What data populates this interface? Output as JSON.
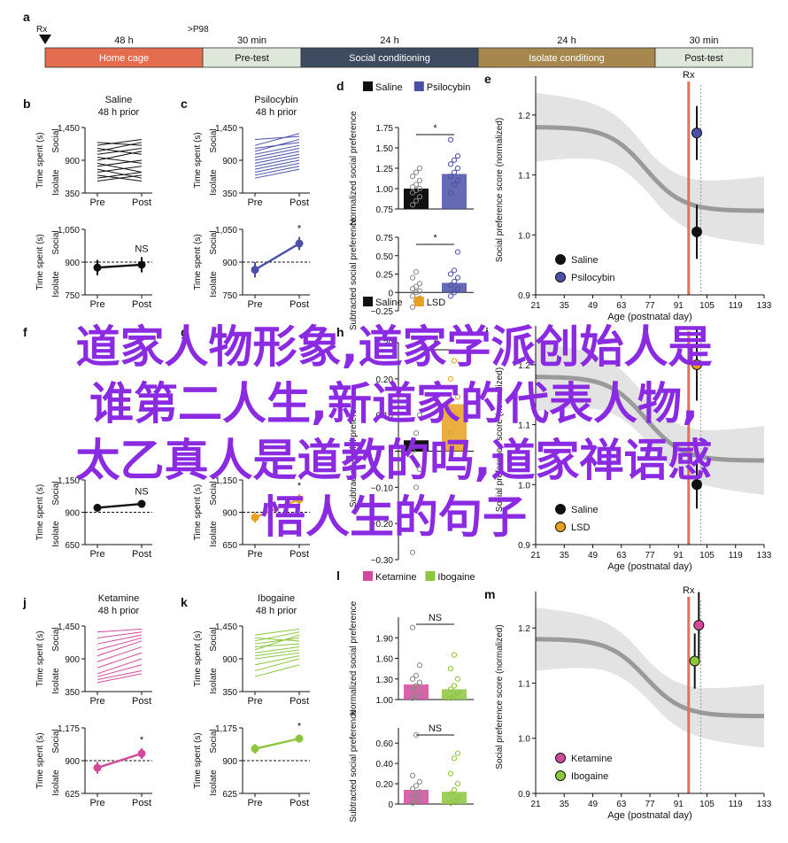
{
  "timeline": {
    "panel": "a",
    "rx_label": "Rx",
    "p98_label": ">P98",
    "segments": [
      {
        "duration": "48 h",
        "label": "Home cage",
        "color": "#e46c4f",
        "text_color": "#ffffff"
      },
      {
        "duration": "30 min",
        "label": "Pre-test",
        "color": "#dfe6da",
        "text_color": "#111111"
      },
      {
        "duration": "24 h",
        "label": "Social conditioning",
        "color": "#3d4a5f",
        "text_color": "#ffffff"
      },
      {
        "duration": "24 h",
        "label": "Isolate conditiong",
        "color": "#a6884f",
        "text_color": "#ffffff"
      },
      {
        "duration": "30 min",
        "label": "Post-test",
        "color": "#dfe6da",
        "text_color": "#111111"
      }
    ]
  },
  "overlay_text": [
    "道家人物形象,道家学派创始人是",
    "谁第二人生,新道家的代表人物,",
    "太乙真人是道教的吗,道家禅语感",
    "悟人生的句子"
  ],
  "chart_data": [
    {
      "panel": "b",
      "type": "line",
      "title": "Saline",
      "subtitle": "48 h prior",
      "ylabel": "Time spent (s)",
      "y_top_label": "Social",
      "y_bottom_label": "Isolate",
      "categories": [
        "Pre",
        "Post"
      ],
      "ylim": [
        350,
        1450
      ],
      "yticks": [
        350,
        900,
        1450
      ],
      "yticklabels": [
        "350",
        "900",
        "1,450"
      ],
      "color": "#111111",
      "series": [
        {
          "values": [
            1200,
            1150
          ]
        },
        {
          "values": [
            1150,
            1250
          ]
        },
        {
          "values": [
            1100,
            1000
          ]
        },
        {
          "values": [
            1050,
            1200
          ]
        },
        {
          "values": [
            1000,
            1100
          ]
        },
        {
          "values": [
            950,
            850
          ]
        },
        {
          "values": [
            900,
            1050
          ]
        },
        {
          "values": [
            850,
            700
          ]
        },
        {
          "values": [
            800,
            900
          ]
        },
        {
          "values": [
            750,
            600
          ]
        },
        {
          "values": [
            700,
            800
          ]
        },
        {
          "values": [
            650,
            550
          ]
        },
        {
          "values": [
            600,
            700
          ]
        },
        {
          "values": [
            550,
            650
          ]
        }
      ]
    },
    {
      "panel": "b2",
      "type": "line",
      "ylabel": "Time spent (s)",
      "y_top_label": "Social",
      "y_bottom_label": "Isolate",
      "categories": [
        "Pre",
        "Post"
      ],
      "ylim": [
        750,
        1050
      ],
      "yticks": [
        750,
        900,
        1050
      ],
      "yticklabels": [
        "750",
        "900",
        "1,050"
      ],
      "baseline": 900,
      "significance": "NS",
      "color": "#111111",
      "mean": [
        875,
        888
      ],
      "err": [
        35,
        35
      ]
    },
    {
      "panel": "c",
      "type": "line",
      "title": "Psilocybin",
      "subtitle": "48 h prior",
      "ylabel": "Time spent (s)",
      "y_top_label": "Social",
      "y_bottom_label": "Isolate",
      "categories": [
        "Pre",
        "Post"
      ],
      "ylim": [
        350,
        1450
      ],
      "yticks": [
        350,
        900,
        1450
      ],
      "yticklabels": [
        "350",
        "900",
        "1,450"
      ],
      "color": "#4b4fa6",
      "series": [
        {
          "values": [
            1250,
            1300
          ]
        },
        {
          "values": [
            1150,
            1350
          ]
        },
        {
          "values": [
            1100,
            1200
          ]
        },
        {
          "values": [
            1050,
            1250
          ]
        },
        {
          "values": [
            1000,
            1150
          ]
        },
        {
          "values": [
            950,
            1100
          ]
        },
        {
          "values": [
            900,
            1050
          ]
        },
        {
          "values": [
            850,
            1000
          ]
        },
        {
          "values": [
            800,
            950
          ]
        },
        {
          "values": [
            750,
            900
          ]
        },
        {
          "values": [
            700,
            850
          ]
        },
        {
          "values": [
            650,
            800
          ]
        },
        {
          "values": [
            600,
            750
          ]
        }
      ]
    },
    {
      "panel": "c2",
      "type": "line",
      "ylabel": "Time spent (s)",
      "y_top_label": "Social",
      "y_bottom_label": "Isolate",
      "categories": [
        "Pre",
        "Post"
      ],
      "ylim": [
        750,
        1050
      ],
      "yticks": [
        750,
        900,
        1050
      ],
      "yticklabels": [
        "750",
        "900",
        "1,050"
      ],
      "baseline": 900,
      "significance": "*",
      "color": "#4b4fa6",
      "mean": [
        865,
        985
      ],
      "err": [
        35,
        30
      ]
    },
    {
      "panel": "d",
      "type": "bar",
      "legend": [
        "Saline",
        "Psilocybin"
      ],
      "colors": [
        "#111111",
        "#4b4fa6"
      ],
      "ylabel": "Normalized social preference",
      "ylim": [
        0.75,
        1.75
      ],
      "yticks": [
        0.75,
        1.0,
        1.25,
        1.5,
        1.75
      ],
      "yticklabels": [
        "0.75",
        "1.00",
        "1.25",
        "1.50",
        "1.75"
      ],
      "values": [
        1.0,
        1.18
      ],
      "significance": "*",
      "points": [
        [
          0.8,
          0.85,
          0.9,
          0.95,
          0.98,
          1.0,
          1.02,
          1.05,
          1.1,
          1.15,
          1.2,
          1.25
        ],
        [
          0.95,
          1.05,
          1.1,
          1.15,
          1.2,
          1.25,
          1.3,
          1.35,
          1.4,
          1.6
        ]
      ]
    },
    {
      "panel": "d2",
      "type": "bar",
      "colors": [
        "#111111",
        "#4b4fa6"
      ],
      "ylabel": "Subtracted social preference",
      "ylim": [
        -0.25,
        0.75
      ],
      "yticks": [
        -0.25,
        0,
        0.25,
        0.5,
        0.75
      ],
      "yticklabels": [
        "−0.25",
        "0",
        "0.25",
        "0.50",
        "0.75"
      ],
      "values": [
        0.0,
        0.13
      ],
      "significance": "*",
      "points": [
        [
          -0.2,
          -0.12,
          -0.08,
          -0.05,
          0.0,
          0.02,
          0.05,
          0.08,
          0.12,
          0.2,
          0.28
        ],
        [
          -0.05,
          0.0,
          0.05,
          0.1,
          0.15,
          0.2,
          0.25,
          0.3,
          0.55
        ]
      ]
    },
    {
      "panel": "e",
      "type": "scatter",
      "ylabel": "Social preference score (normalized)",
      "xlabel": "Age (postnatal day)",
      "xlim": [
        21,
        133
      ],
      "xticks": [
        21,
        35,
        49,
        63,
        77,
        91,
        105,
        119,
        133
      ],
      "ylim": [
        0.9,
        1.25
      ],
      "yticks": [
        0.9,
        1.0,
        1.1,
        1.2
      ],
      "yticklabels": [
        "0.9",
        "1.0",
        "1.1",
        "1.2"
      ],
      "rx_label": "Rx",
      "rx_x": 96,
      "dotted_x": 102,
      "legend": [
        "Saline",
        "Psilocybin"
      ],
      "colors": [
        "#111111",
        "#4b4fa6"
      ],
      "points": [
        {
          "name": "Saline",
          "x": 100,
          "y": 1.005,
          "err": 0.045
        },
        {
          "name": "Psilocybin",
          "x": 100,
          "y": 1.17,
          "err": 0.045
        }
      ]
    },
    {
      "panel": "j",
      "type": "line",
      "title": "Ketamine",
      "subtitle": "48 h prior",
      "ylabel": "Time spent (s)",
      "y_top_label": "Social",
      "y_bottom_label": "Isolate",
      "categories": [
        "Pre",
        "Post"
      ],
      "ylim": [
        350,
        1450
      ],
      "yticks": [
        350,
        900,
        1450
      ],
      "yticklabels": [
        "350",
        "900",
        "1,450"
      ],
      "color": "#d14a9a",
      "series": [
        {
          "values": [
            1350,
            1400
          ]
        },
        {
          "values": [
            1250,
            1350
          ]
        },
        {
          "values": [
            1150,
            1300
          ]
        },
        {
          "values": [
            1050,
            1250
          ]
        },
        {
          "values": [
            950,
            1200
          ]
        },
        {
          "values": [
            850,
            1100
          ]
        },
        {
          "values": [
            750,
            1000
          ]
        },
        {
          "values": [
            650,
            900
          ]
        },
        {
          "values": [
            600,
            800
          ]
        },
        {
          "values": [
            550,
            700
          ]
        },
        {
          "values": [
            500,
            650
          ]
        }
      ]
    },
    {
      "panel": "j2",
      "type": "line",
      "ylabel": "Time spent (s)",
      "y_top_label": "Social",
      "y_bottom_label": "Isolate",
      "categories": [
        "Pre",
        "Post"
      ],
      "ylim": [
        625,
        1175
      ],
      "yticks": [
        625,
        900,
        1175
      ],
      "yticklabels": [
        "625",
        "900",
        "1,175"
      ],
      "baseline": 900,
      "significance": "*",
      "color": "#d14a9a",
      "mean": [
        840,
        960
      ],
      "err": [
        50,
        45
      ]
    },
    {
      "panel": "k",
      "type": "line",
      "title": "Ibogaine",
      "subtitle": "48 h prior",
      "ylabel": "Time spent (s)",
      "y_top_label": "Social",
      "y_bottom_label": "Isolate",
      "categories": [
        "Pre",
        "Post"
      ],
      "ylim": [
        350,
        1450
      ],
      "yticks": [
        350,
        900,
        1450
      ],
      "yticklabels": [
        "350",
        "900",
        "1,450"
      ],
      "color": "#8cc63f",
      "series": [
        {
          "values": [
            1300,
            1400
          ]
        },
        {
          "values": [
            1250,
            1200
          ]
        },
        {
          "values": [
            1200,
            1350
          ]
        },
        {
          "values": [
            1150,
            1250
          ]
        },
        {
          "values": [
            1100,
            1150
          ]
        },
        {
          "values": [
            1050,
            1300
          ]
        },
        {
          "values": [
            1000,
            1100
          ]
        },
        {
          "values": [
            950,
            1050
          ]
        },
        {
          "values": [
            900,
            1000
          ]
        },
        {
          "values": [
            800,
            950
          ]
        },
        {
          "values": [
            700,
            900
          ]
        },
        {
          "values": [
            600,
            800
          ]
        }
      ]
    },
    {
      "panel": "k2",
      "type": "line",
      "ylabel": "Time spent (s)",
      "y_top_label": "Social",
      "y_bottom_label": "Isolate",
      "categories": [
        "Pre",
        "Post"
      ],
      "ylim": [
        625,
        1175
      ],
      "yticks": [
        625,
        900,
        1175
      ],
      "yticklabels": [
        "625",
        "900",
        "1,175"
      ],
      "baseline": 900,
      "significance": "*",
      "color": "#8cc63f",
      "mean": [
        1000,
        1085
      ],
      "err": [
        40,
        35
      ]
    },
    {
      "panel": "l",
      "type": "bar",
      "legend": [
        "Ketamine",
        "Ibogaine"
      ],
      "colors": [
        "#d14a9a",
        "#8cc63f"
      ],
      "ylabel": "Normalized social preference",
      "ylim": [
        1.0,
        2.2
      ],
      "yticks": [
        1.0,
        1.3,
        1.6,
        1.9
      ],
      "yticklabels": [
        "1.00",
        "1.30",
        "1.60",
        "1.90"
      ],
      "values": [
        1.22,
        1.15
      ],
      "significance": "NS",
      "points": [
        [
          1.02,
          1.05,
          1.1,
          1.15,
          1.2,
          1.25,
          1.3,
          1.35,
          1.5,
          2.05
        ],
        [
          1.02,
          1.05,
          1.1,
          1.15,
          1.2,
          1.3,
          1.45,
          1.65
        ]
      ]
    },
    {
      "panel": "l2",
      "type": "bar",
      "colors": [
        "#d14a9a",
        "#8cc63f"
      ],
      "ylabel": "Subtracted social preference",
      "ylim": [
        0.0,
        0.75
      ],
      "yticks": [
        0.0,
        0.2,
        0.4,
        0.6
      ],
      "yticklabels": [
        "0",
        "0.20",
        "0.40",
        "0.60"
      ],
      "values": [
        0.14,
        0.12
      ],
      "significance": "NS",
      "points": [
        [
          0.01,
          0.03,
          0.05,
          0.08,
          0.1,
          0.12,
          0.15,
          0.18,
          0.22,
          0.28,
          0.68
        ],
        [
          0.01,
          0.03,
          0.06,
          0.1,
          0.14,
          0.2,
          0.3,
          0.45,
          0.5
        ]
      ]
    },
    {
      "panel": "m",
      "type": "scatter",
      "ylabel": "Social preference score (normalized)",
      "xlabel": "Age (postnatal day)",
      "xlim": [
        21,
        133
      ],
      "xticks": [
        21,
        35,
        49,
        63,
        77,
        91,
        105,
        119,
        133
      ],
      "ylim": [
        0.9,
        1.25
      ],
      "yticks": [
        0.9,
        1.0,
        1.1,
        1.2
      ],
      "yticklabels": [
        "0.9",
        "1.0",
        "1.1",
        "1.2"
      ],
      "rx_label": "Rx",
      "rx_x": 96,
      "dotted_x": 102,
      "legend": [
        "Ketamine",
        "Ibogaine"
      ],
      "colors": [
        "#d14a9a",
        "#8cc63f"
      ],
      "points": [
        {
          "name": "Ketamine",
          "x": 101,
          "y": 1.205,
          "err": 0.06
        },
        {
          "name": "Ibogaine",
          "x": 99,
          "y": 1.14,
          "err": 0.05
        }
      ]
    },
    {
      "panel": "f",
      "type": "line",
      "ylabel": "Time spent (s)",
      "y_top_label": "Social",
      "y_bottom_label": "Isolate",
      "categories": [
        "Pre",
        "Post"
      ],
      "ylim": [
        650,
        1150
      ],
      "yticks": [
        650,
        900,
        1150
      ],
      "yticklabels": [
        "650",
        "900",
        "1,150"
      ],
      "baseline": 900,
      "significance": "NS",
      "color": "#111111",
      "mean": [
        935,
        965
      ],
      "err": [
        30,
        30
      ]
    },
    {
      "panel": "g",
      "type": "line",
      "ylabel": "Time spent (s)",
      "y_top_label": "Social",
      "y_bottom_label": "Isolate",
      "categories": [
        "Pre",
        "Post"
      ],
      "ylim": [
        650,
        1150
      ],
      "yticks": [
        650,
        900,
        1150
      ],
      "yticklabels": [
        "650",
        "900",
        "1,150"
      ],
      "baseline": 900,
      "significance": "*",
      "color": "#e8a020",
      "mean": [
        860,
        1000
      ],
      "err": [
        40,
        40
      ]
    },
    {
      "panel": "h",
      "type": "bar",
      "legend": [
        "Saline",
        "LSD"
      ],
      "colors": [
        "#111111",
        "#e8a020"
      ],
      "ylabel": "Subtracted social preference",
      "ylim": [
        -0.3,
        0.3
      ],
      "yticks": [
        -0.3,
        -0.2,
        -0.1,
        0,
        0.1,
        0.2,
        0.3
      ],
      "yticklabels": [
        "−0.30",
        "−0.20",
        "−0.10",
        "0",
        "0.10",
        "0.20",
        "0.30"
      ],
      "values": [
        0.03,
        0.13
      ],
      "significance": "*",
      "points": [
        [
          -0.28,
          -0.1,
          -0.05,
          0.0,
          0.05,
          0.1
        ],
        [
          0.05,
          0.1,
          0.15,
          0.2,
          0.25
        ]
      ]
    },
    {
      "panel": "i",
      "type": "scatter",
      "ylabel": "Social preference score (normalized)",
      "xlabel": "Age (postnatal day)",
      "xlim": [
        21,
        133
      ],
      "xticks": [
        21,
        35,
        49,
        63,
        77,
        91,
        105,
        119,
        133
      ],
      "ylim": [
        0.9,
        1.25
      ],
      "yticks": [
        0.9,
        1.0,
        1.1,
        1.2
      ],
      "yticklabels": [
        "0.9",
        "1.0",
        "1.1",
        "1.2"
      ],
      "rx_x": 96,
      "dotted_x": 102,
      "legend": [
        "Saline",
        "LSD"
      ],
      "colors": [
        "#111111",
        "#e8a020"
      ],
      "points": [
        {
          "name": "LSD",
          "x": 100,
          "y": 1.2,
          "err": 0.06
        },
        {
          "name": "Saline",
          "x": 100,
          "y": 1.0,
          "err": 0.04
        }
      ]
    }
  ]
}
